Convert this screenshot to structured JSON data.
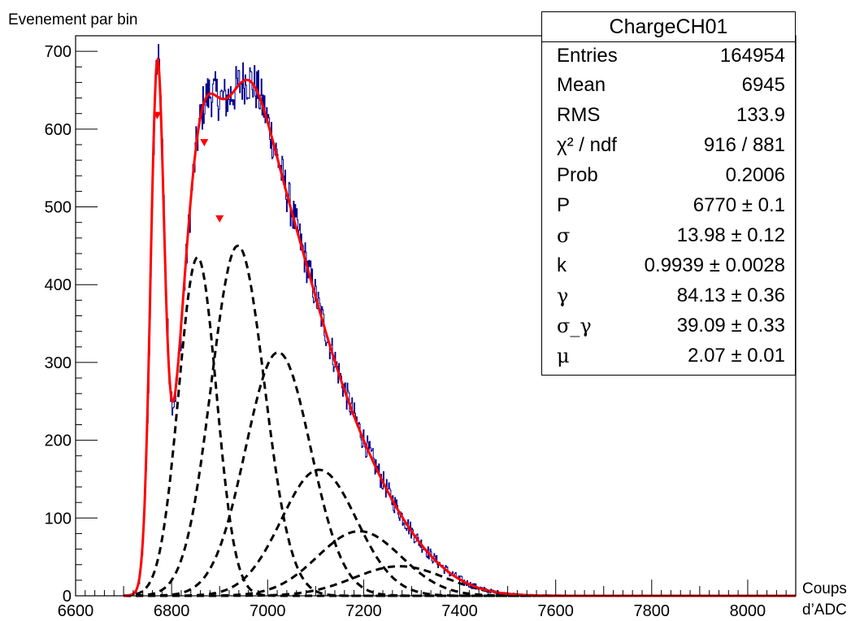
{
  "chart_data": {
    "type": "histogram",
    "ylabel": "Evenement par bin",
    "xlabel": "Coups d’ADC",
    "xlabel_lines": [
      "Coups",
      "d’ADC"
    ],
    "xlim": [
      6600,
      8100
    ],
    "ylim": [
      0,
      720
    ],
    "x_ticks": [
      "6600",
      "6800",
      "7000",
      "7200",
      "7400",
      "7600",
      "7800",
      "8000"
    ],
    "y_ticks": [
      "0",
      "100",
      "200",
      "300",
      "400",
      "500",
      "600",
      "700"
    ],
    "colors": {
      "histogram": "#00008b",
      "fit": "#ff0000",
      "components": "#000000"
    },
    "fit_model": {
      "pedestal": {
        "mean": 6770,
        "sigma": 13.98,
        "peak": 640
      },
      "components": [
        {
          "mean": 6854,
          "sigma": 39.09,
          "peak": 435
        },
        {
          "mean": 6938,
          "sigma": 55.28,
          "peak": 450
        },
        {
          "mean": 7022,
          "sigma": 67.71,
          "peak": 313
        },
        {
          "mean": 7107,
          "sigma": 78.18,
          "peak": 162
        },
        {
          "mean": 7191,
          "sigma": 87.41,
          "peak": 83
        },
        {
          "mean": 7275,
          "sigma": 95.75,
          "peak": 38
        }
      ]
    },
    "fit_markers": [
      {
        "x": 6770,
        "y": 618
      },
      {
        "x": 6868,
        "y": 583
      },
      {
        "x": 6900,
        "y": 485
      }
    ]
  },
  "stats_box": {
    "title": "ChargeCH01",
    "rows": [
      {
        "name": "Entries",
        "value": "164954"
      },
      {
        "name": "Mean",
        "value": "6945"
      },
      {
        "name": "RMS",
        "value": "133.9"
      },
      {
        "name": "χ² / ndf",
        "value": "916 / 881"
      },
      {
        "name": "Prob",
        "value": "0.2006"
      },
      {
        "name": "P",
        "value": "6770 ± 0.1"
      },
      {
        "name": "σ",
        "value": "13.98 ± 0.12"
      },
      {
        "name": "k",
        "value": "0.9939 ± 0.0028"
      },
      {
        "name": "γ",
        "value": "84.13 ± 0.36"
      },
      {
        "name": "σ_γ",
        "value": "39.09 ± 0.33"
      },
      {
        "name": "μ",
        "value": "2.07 ± 0.01"
      }
    ]
  }
}
